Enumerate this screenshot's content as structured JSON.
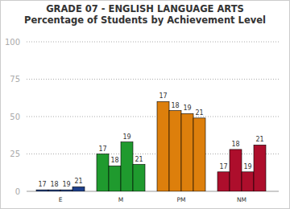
{
  "chart_data": {
    "type": "bar",
    "title": "GRADE 07 - ENGLISH LANGUAGE ARTS",
    "subtitle": "Percentage of Students by Achievement Level",
    "categories": [
      "E",
      "M",
      "PM",
      "NM"
    ],
    "colors": [
      "#1c3f8c",
      "#1f9a2e",
      "#dd7f0c",
      "#ad0e2c"
    ],
    "series": [
      {
        "name": "17",
        "values": [
          1,
          25,
          60,
          13
        ]
      },
      {
        "name": "18",
        "values": [
          1,
          17,
          54,
          28
        ]
      },
      {
        "name": "19",
        "values": [
          1,
          33,
          52,
          13
        ]
      },
      {
        "name": "21",
        "values": [
          3,
          18,
          49,
          31
        ]
      }
    ],
    "ylim": [
      0,
      100
    ],
    "yticks": [
      0,
      25,
      50,
      75,
      100
    ],
    "grid": true
  }
}
